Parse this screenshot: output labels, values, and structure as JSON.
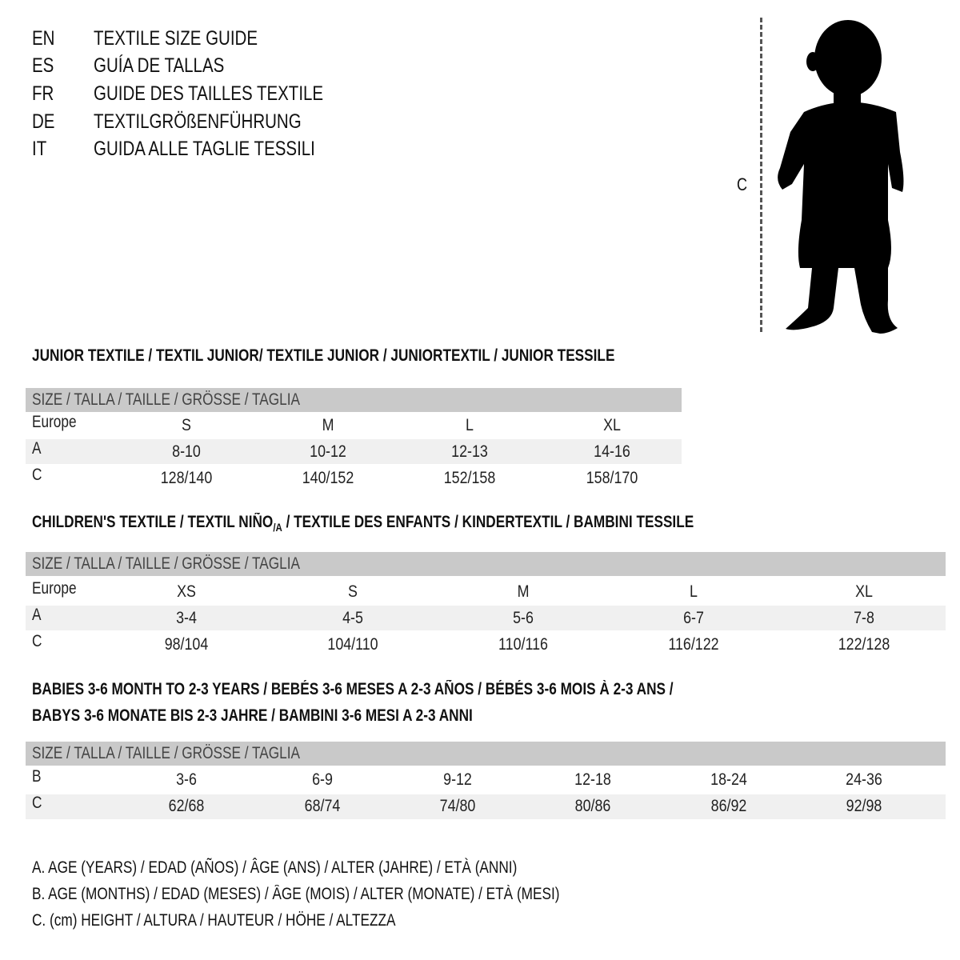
{
  "titles": [
    {
      "lang": "EN",
      "text": "TEXTILE SIZE GUIDE"
    },
    {
      "lang": "ES",
      "text": "GUÍA DE TALLAS"
    },
    {
      "lang": "FR",
      "text": "GUIDE DES TAILLES TEXTILE"
    },
    {
      "lang": "DE",
      "text": "TEXTILGRÖßENFÜHRUNG"
    },
    {
      "lang": "IT",
      "text": "GUIDA ALLE TAGLIE TESSILI"
    }
  ],
  "figure": {
    "measure_label": "C",
    "icon": "child-silhouette"
  },
  "size_header": "SIZE / TALLA / TAILLE / GRÖSSE / TAGLIA",
  "junior": {
    "title": "JUNIOR TEXTILE / TEXTIL JUNIOR/ TEXTILE JUNIOR / JUNIORTEXTIL / JUNIOR TESSILE",
    "rows": [
      {
        "label": "Europe",
        "values": [
          "S",
          "M",
          "L",
          "XL"
        ]
      },
      {
        "label": "A",
        "values": [
          "8-10",
          "10-12",
          "12-13",
          "14-16"
        ]
      },
      {
        "label": "C",
        "values": [
          "128/140",
          "140/152",
          "152/158",
          "158/170"
        ]
      }
    ]
  },
  "children": {
    "title_a": "CHILDREN'S TEXTILE / TEXTIL NIÑO",
    "title_sub": "/A",
    "title_b": " / TEXTILE DES ENFANTS / KINDERTEXTIL / BAMBINI TESSILE",
    "rows": [
      {
        "label": "Europe",
        "values": [
          "XS",
          "S",
          "M",
          "L",
          "XL"
        ]
      },
      {
        "label": "A",
        "values": [
          "3-4",
          "4-5",
          "5-6",
          "6-7",
          "7-8"
        ]
      },
      {
        "label": "C",
        "values": [
          "98/104",
          "104/110",
          "110/116",
          "116/122",
          "122/128"
        ]
      }
    ]
  },
  "babies": {
    "title_line1": "BABIES 3-6 MONTH TO 2-3 YEARS / BEBÉS 3-6 MESES A 2-3 AÑOS / BÉBÉS 3-6 MOIS À 2-3 ANS /",
    "title_line2": "BABYS 3-6 MONATE BIS 2-3 JAHRE / BAMBINI 3-6 MESI A 2-3 ANNI",
    "rows": [
      {
        "label": "B",
        "values": [
          "3-6",
          "6-9",
          "9-12",
          "12-18",
          "18-24",
          "24-36"
        ]
      },
      {
        "label": "C",
        "values": [
          "62/68",
          "68/74",
          "74/80",
          "80/86",
          "86/92",
          "92/98"
        ]
      }
    ]
  },
  "legend": [
    "A. AGE (YEARS) / EDAD (AÑOS) / ÂGE (ANS) / ALTER (JAHRE) / ETÀ (ANNI)",
    "B. AGE (MONTHS) / EDAD (MESES) / ÂGE (MOIS) / ALTER (MONATE) / ETÀ (MESI)",
    "C. (cm) HEIGHT / ALTURA / HAUTEUR / HÖHE / ALTEZZA"
  ],
  "colors": {
    "header_bar": "#c9c9c9",
    "row_shade": "#f0f0f0",
    "text": "#111111"
  }
}
